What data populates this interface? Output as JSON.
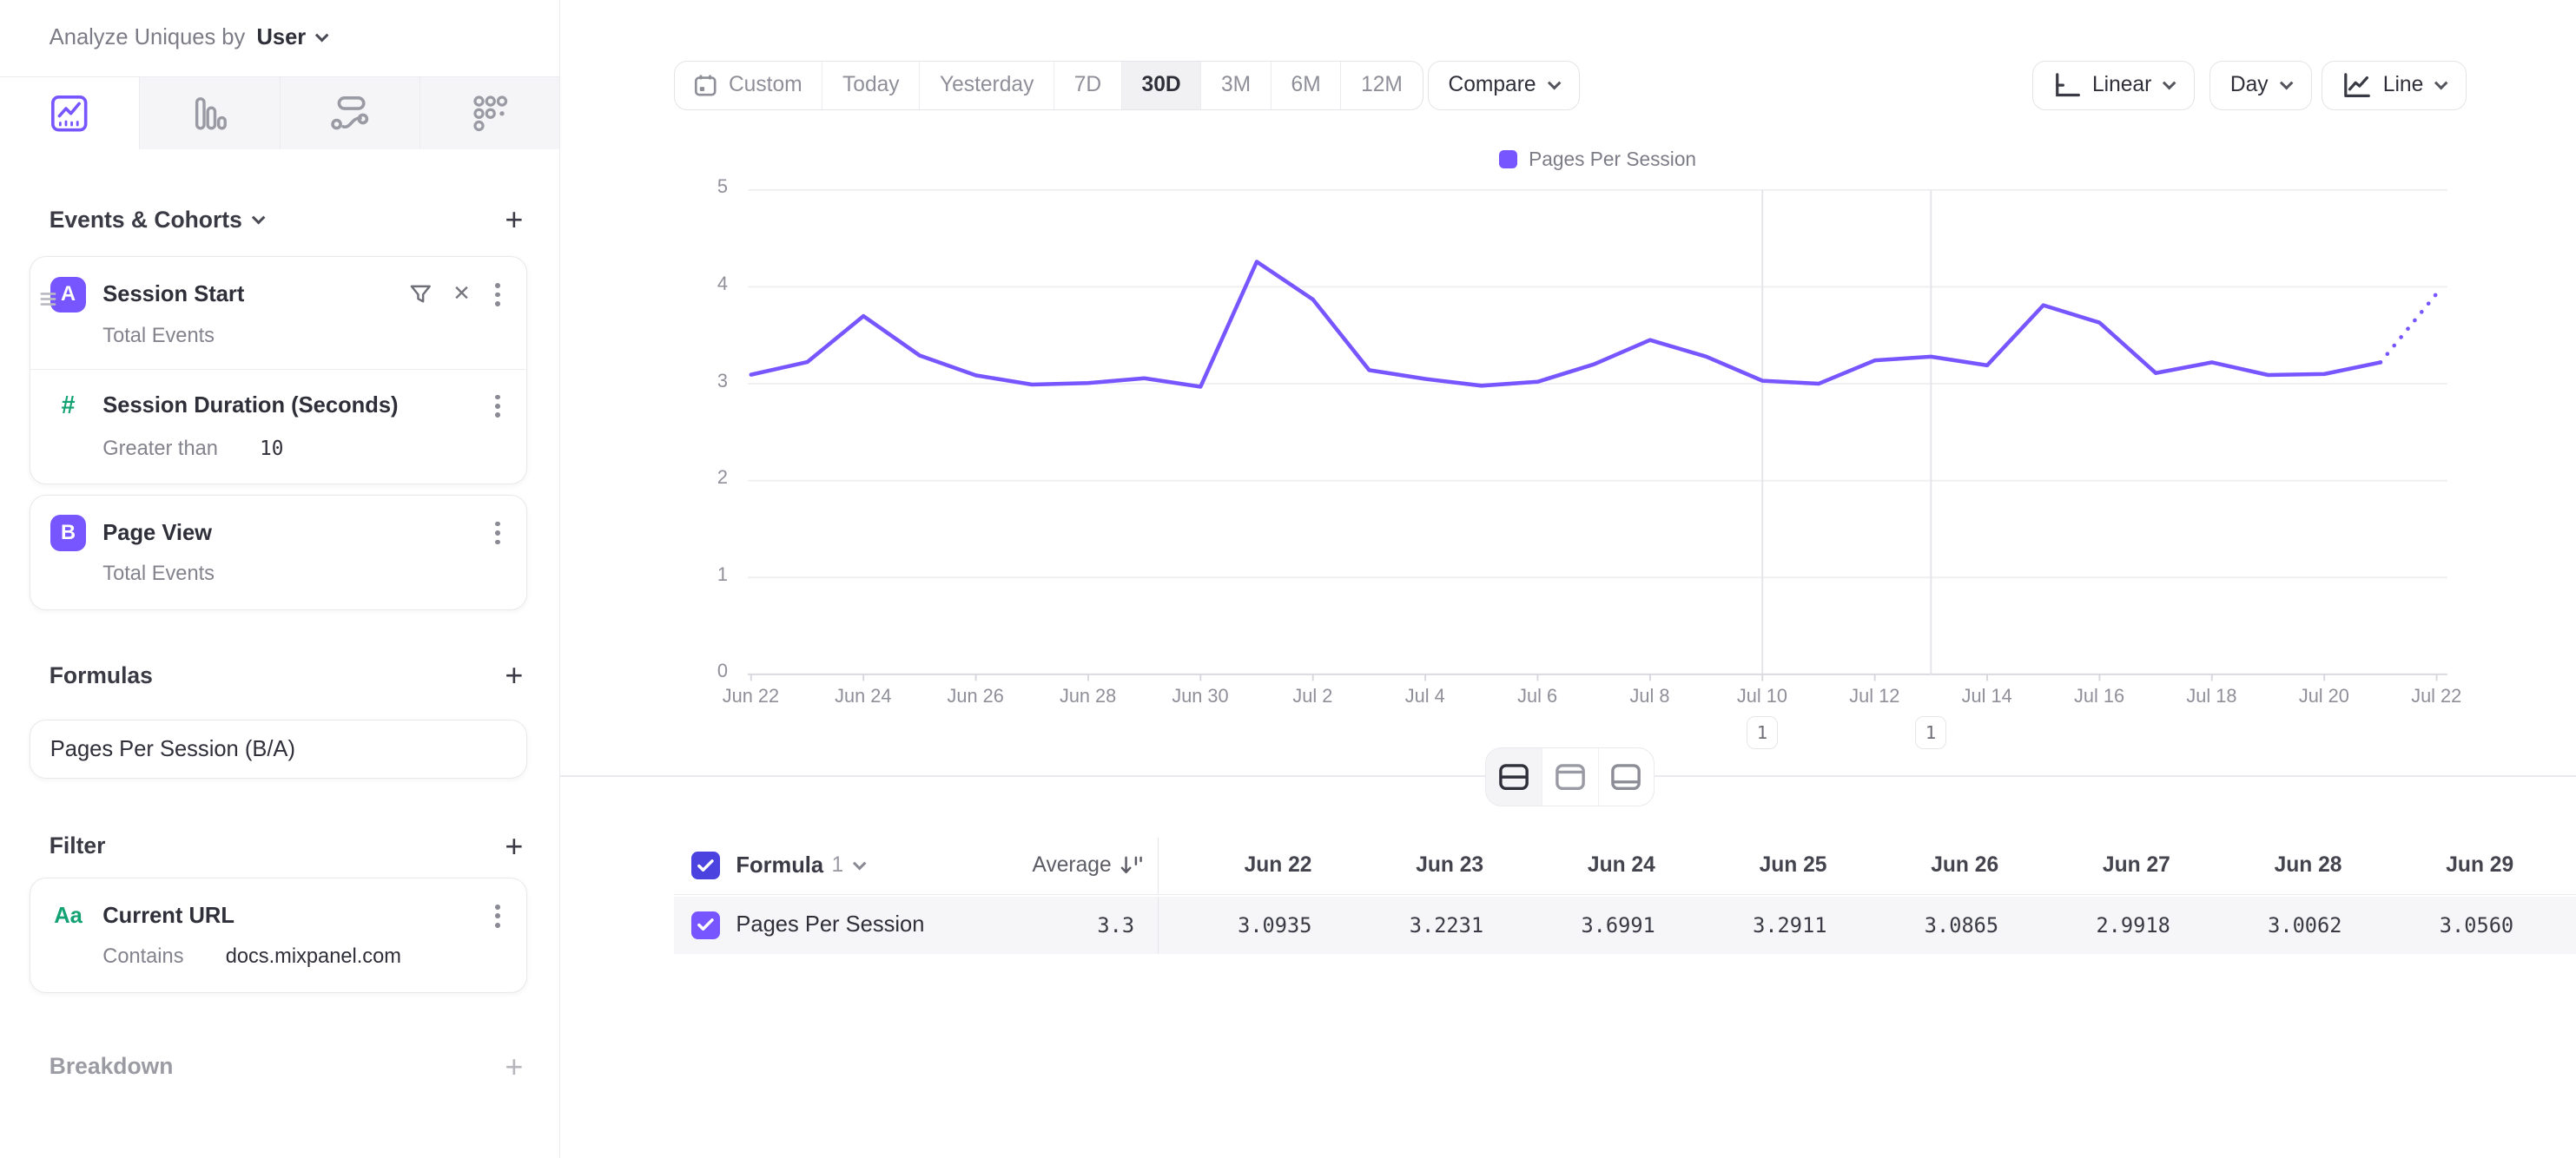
{
  "sidebar": {
    "analyze_label": "Analyze Uniques by",
    "analyze_value": "User",
    "tabs": [
      {
        "icon": "insights-line-chart-icon",
        "active": true
      },
      {
        "icon": "bar-chart-icon",
        "active": false
      },
      {
        "icon": "flows-icon",
        "active": false
      },
      {
        "icon": "retention-grid-icon",
        "active": false
      }
    ],
    "sections": {
      "events": {
        "title": "Events & Cohorts",
        "add": "+"
      },
      "formulas": {
        "title": "Formulas",
        "add": "+"
      },
      "filter": {
        "title": "Filter",
        "add": "+"
      },
      "breakdown": {
        "title": "Breakdown",
        "add": "+"
      }
    },
    "events": [
      {
        "badge": "A",
        "name": "Session Start",
        "measure": "Total Events",
        "property_filter": {
          "icon_text": "#",
          "name": "Session Duration (Seconds)",
          "operator": "Greater than",
          "value": "10"
        }
      },
      {
        "badge": "B",
        "name": "Page View",
        "measure": "Total Events"
      }
    ],
    "formulas": [
      {
        "name": "Pages Per Session (B/A)"
      }
    ],
    "filters": [
      {
        "icon_text": "Aa",
        "name": "Current URL",
        "operator": "Contains",
        "value": "docs.mixpanel.com"
      }
    ]
  },
  "toolbar": {
    "date_ranges": [
      "Custom",
      "Today",
      "Yesterday",
      "7D",
      "30D",
      "3M",
      "6M",
      "12M"
    ],
    "active_range": "30D",
    "compare_label": "Compare",
    "scale_label": "Linear",
    "interval_label": "Day",
    "chart_type_label": "Line"
  },
  "chart_data": {
    "type": "line",
    "title": "",
    "xlabel": "",
    "ylabel": "",
    "x": [
      "Jun 22",
      "Jun 23",
      "Jun 24",
      "Jun 25",
      "Jun 26",
      "Jun 27",
      "Jun 28",
      "Jun 29",
      "Jun 30",
      "Jul 1",
      "Jul 2",
      "Jul 3",
      "Jul 4",
      "Jul 5",
      "Jul 6",
      "Jul 7",
      "Jul 8",
      "Jul 9",
      "Jul 10",
      "Jul 11",
      "Jul 12",
      "Jul 13",
      "Jul 14",
      "Jul 15",
      "Jul 16",
      "Jul 17",
      "Jul 18",
      "Jul 19",
      "Jul 20",
      "Jul 21",
      "Jul 22"
    ],
    "xticks": [
      "Jun 22",
      "Jun 24",
      "Jun 26",
      "Jun 28",
      "Jun 30",
      "Jul 2",
      "Jul 4",
      "Jul 6",
      "Jul 8",
      "Jul 10",
      "Jul 12",
      "Jul 14",
      "Jul 16",
      "Jul 18",
      "Jul 20",
      "Jul 22"
    ],
    "yticks": [
      0,
      1,
      2,
      3,
      4,
      5
    ],
    "ylim": [
      0,
      5
    ],
    "series": [
      {
        "name": "Pages Per Session",
        "color": "#7856FF",
        "values": [
          3.0935,
          3.2231,
          3.6991,
          3.2911,
          3.0865,
          2.9918,
          3.0062,
          3.056,
          2.97,
          4.26,
          3.87,
          3.14,
          3.05,
          2.98,
          3.02,
          3.2,
          3.45,
          3.28,
          3.03,
          3.0,
          3.24,
          3.28,
          3.19,
          3.81,
          3.63,
          3.11,
          3.22,
          3.09,
          3.1,
          3.22,
          3.93
        ]
      }
    ],
    "last_segment_dotted": true,
    "annotations": [
      {
        "index": 18,
        "x": "Jul 10",
        "label": "1"
      },
      {
        "index": 21,
        "x": "Jul 13",
        "label": "1"
      }
    ],
    "legend_position": "top-center",
    "grid": "horizontal"
  },
  "view_toggle": {
    "options": [
      "chart-and-table",
      "chart-only",
      "table-only"
    ],
    "active": "chart-and-table"
  },
  "table": {
    "group_label": "Formula",
    "group_number": "1",
    "average_label": "Average",
    "columns": [
      "Jun 22",
      "Jun 23",
      "Jun 24",
      "Jun 25",
      "Jun 26",
      "Jun 27",
      "Jun 28",
      "Jun 29"
    ],
    "rows": [
      {
        "checked": true,
        "name": "Pages Per Session",
        "average": "3.3",
        "values": [
          "3.0935",
          "3.2231",
          "3.6991",
          "3.2911",
          "3.0865",
          "2.9918",
          "3.0062",
          "3.0560"
        ]
      }
    ]
  },
  "colors": {
    "accent": "#7856FF",
    "checkbox_header": "#4B42E0",
    "checkbox_row": "#7856FF",
    "property_green": "#13A273",
    "line": "#7856FF"
  }
}
